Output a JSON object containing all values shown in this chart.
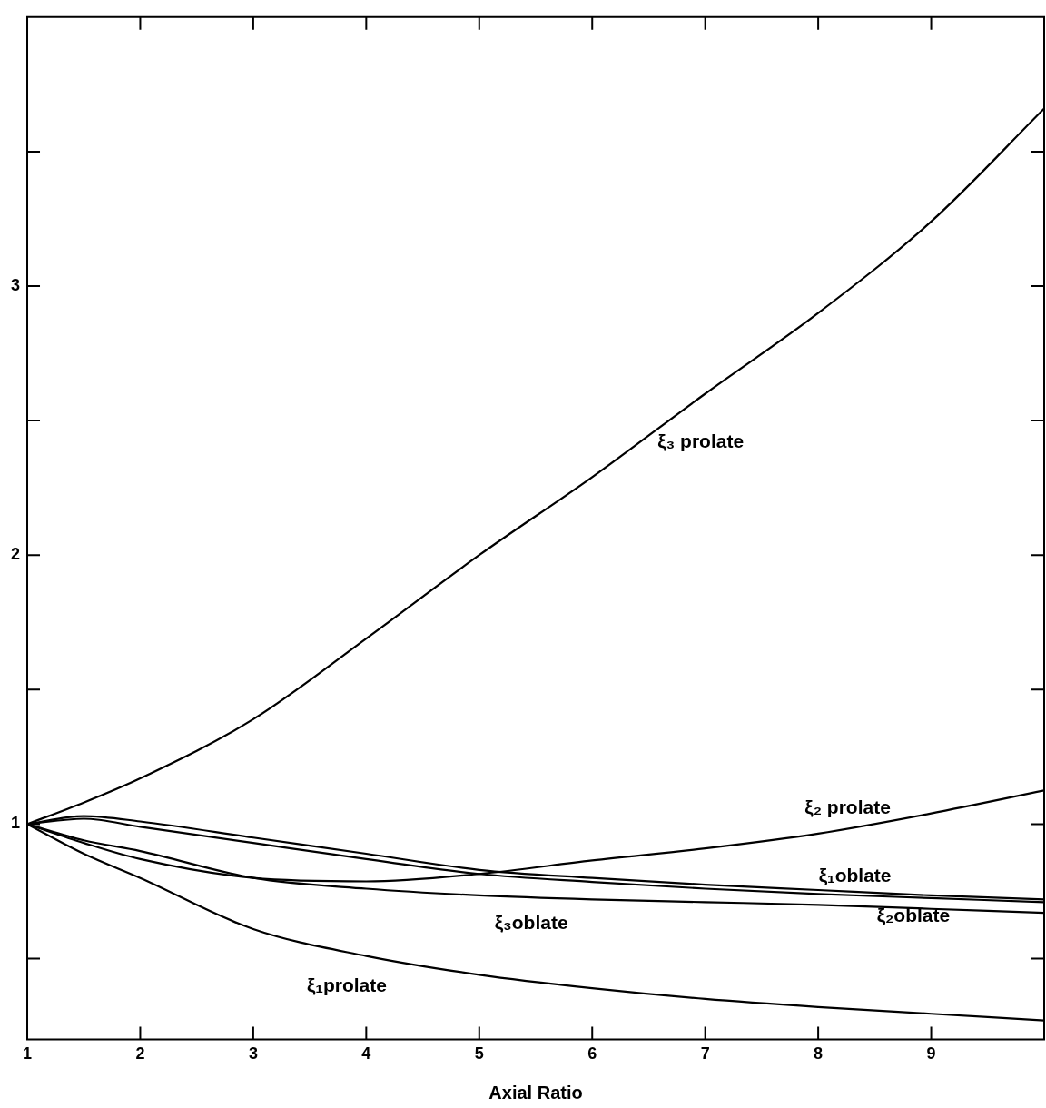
{
  "chart_data": {
    "type": "line",
    "xlabel": "Axial Ratio",
    "xlim": [
      1,
      10
    ],
    "xticks": [
      1,
      2,
      3,
      4,
      5,
      6,
      7,
      8,
      9
    ],
    "ylim": [
      0.2,
      4.0
    ],
    "yticks": [
      {
        "value": 0.5,
        "label": null
      },
      1,
      {
        "value": 1.5,
        "label": null
      },
      2,
      {
        "value": 2.5,
        "label": null
      },
      3,
      {
        "value": 3.5,
        "label": null
      }
    ],
    "grid": false,
    "legend": false,
    "marker": "none",
    "line_style": "solid",
    "x": [
      1,
      1.5,
      2,
      3,
      4,
      5,
      6,
      7,
      8,
      9,
      10
    ],
    "series": [
      {
        "name": "ξ₃ prolate",
        "color": "#000000",
        "values": [
          1,
          1.08,
          1.17,
          1.39,
          1.69,
          2.0,
          2.29,
          2.6,
          2.9,
          3.24,
          3.66
        ]
      },
      {
        "name": "ξ₂ prolate",
        "color": "#000000",
        "values": [
          1,
          0.93,
          0.87,
          0.8,
          0.787,
          0.815,
          0.865,
          0.91,
          0.965,
          1.04,
          1.125
        ]
      },
      {
        "name": "ξ₁oblate",
        "color": "#000000",
        "values": [
          1,
          1.03,
          1.01,
          0.95,
          0.89,
          0.83,
          0.8,
          0.775,
          0.755,
          0.735,
          0.72
        ]
      },
      {
        "name": "ξ₂oblate",
        "color": "#000000",
        "values": [
          1,
          1.02,
          0.99,
          0.93,
          0.87,
          0.815,
          0.785,
          0.76,
          0.74,
          0.725,
          0.71
        ]
      },
      {
        "name": "ξ₃oblate",
        "color": "#000000",
        "values": [
          1,
          0.94,
          0.9,
          0.8,
          0.76,
          0.735,
          0.72,
          0.71,
          0.7,
          0.685,
          0.67
        ]
      },
      {
        "name": "ξ₁prolate",
        "color": "#000000",
        "values": [
          1,
          0.89,
          0.8,
          0.61,
          0.51,
          0.44,
          0.39,
          0.35,
          0.32,
          0.295,
          0.27
        ]
      }
    ]
  }
}
